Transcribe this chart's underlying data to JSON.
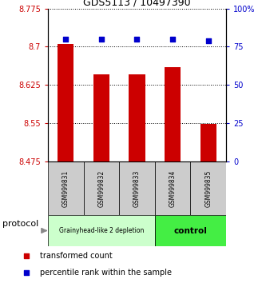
{
  "title": "GDS5113 / 10497390",
  "samples": [
    "GSM999831",
    "GSM999832",
    "GSM999833",
    "GSM999834",
    "GSM999835"
  ],
  "bar_values": [
    8.705,
    8.645,
    8.645,
    8.66,
    8.548
  ],
  "bar_bottom": 8.475,
  "percentile_values": [
    80,
    80,
    80,
    80,
    79
  ],
  "left_ylim": [
    8.475,
    8.775
  ],
  "right_ylim": [
    0,
    100
  ],
  "left_yticks": [
    8.475,
    8.55,
    8.625,
    8.7,
    8.775
  ],
  "left_ytick_labels": [
    "8.475",
    "8.55",
    "8.625",
    "8.7",
    "8.775"
  ],
  "right_yticks": [
    0,
    25,
    50,
    75,
    100
  ],
  "right_ytick_labels": [
    "0",
    "25",
    "50",
    "75",
    "100%"
  ],
  "bar_color": "#cc0000",
  "percentile_color": "#0000cc",
  "group1_label": "Grainyhead-like 2 depletion",
  "group2_label": "control",
  "group1_color": "#ccffcc",
  "group2_color": "#44ee44",
  "group1_samples": [
    0,
    1,
    2
  ],
  "group2_samples": [
    3,
    4
  ],
  "protocol_label": "protocol",
  "legend_bar_label": "transformed count",
  "legend_percentile_label": "percentile rank within the sample",
  "tick_label_color_left": "#cc0000",
  "tick_label_color_right": "#0000cc"
}
